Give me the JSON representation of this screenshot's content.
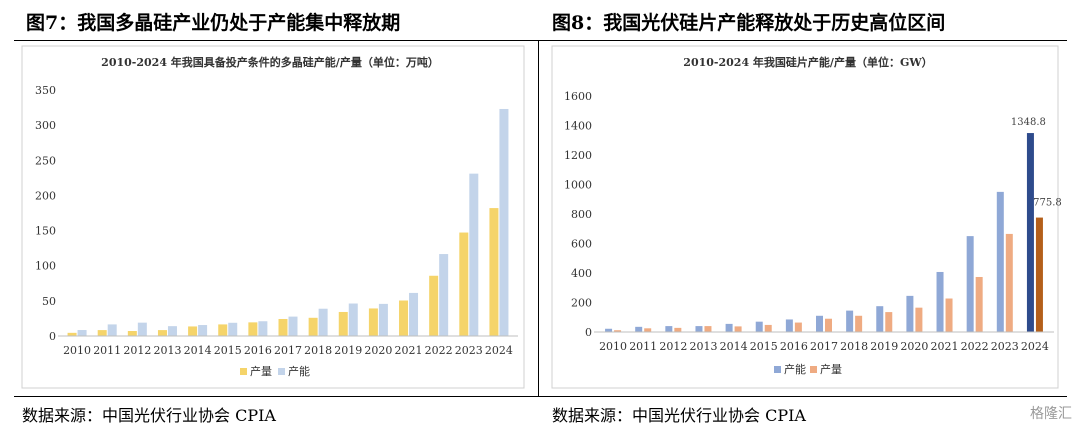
{
  "figures": {
    "left_title": "图7：我国多晶硅产业仍处于产能集中释放期",
    "right_title": "图8：我国光伏硅片产能释放处于历史高位区间",
    "left_source": "数据来源：中国光伏行业协会 CPIA",
    "right_source": "数据来源：中国光伏行业协会 CPIA",
    "watermark": "格隆汇"
  },
  "colors": {
    "left_output": "#f5d46a",
    "left_capacity": "#c3d4ea",
    "right_capacity": "#8fa8d6",
    "right_output": "#efab82",
    "right_capacity_2024": "#2e4b8c",
    "right_output_2024": "#b45f1a"
  },
  "chart_data": [
    {
      "type": "bar",
      "title": "2010-2024 年我国具备投产条件的多晶硅产能/产量（单位：万吨）",
      "categories": [
        "2010",
        "2011",
        "2012",
        "2013",
        "2014",
        "2015",
        "2016",
        "2017",
        "2018",
        "2019",
        "2020",
        "2021",
        "2022",
        "2023",
        "2024"
      ],
      "series": [
        {
          "name": "产量",
          "values": [
            4.5,
            8.4,
            7.1,
            8.4,
            13.6,
            16.5,
            19.4,
            24.2,
            25.9,
            34.2,
            39.2,
            50.5,
            85.7,
            147.2,
            182.0
          ]
        },
        {
          "name": "产能",
          "values": [
            8.5,
            16.5,
            19.0,
            14.0,
            15.6,
            18.8,
            21.0,
            27.6,
            38.8,
            46.2,
            45.7,
            61.3,
            116.6,
            231.0,
            323.0
          ]
        }
      ],
      "ylim": [
        0,
        350
      ],
      "yticks": [
        0,
        50,
        100,
        150,
        200,
        250,
        300,
        350
      ],
      "grid": false,
      "legend": "bottom"
    },
    {
      "type": "bar",
      "title": "2010-2024 年我国硅片产能/产量（单位：GW）",
      "categories": [
        "2010",
        "2011",
        "2012",
        "2013",
        "2014",
        "2015",
        "2016",
        "2017",
        "2018",
        "2019",
        "2020",
        "2021",
        "2022",
        "2023",
        "2024"
      ],
      "series": [
        {
          "name": "产能",
          "values": [
            22,
            35,
            40,
            40,
            55,
            70,
            85,
            110,
            145,
            175,
            245,
            407,
            650,
            950,
            1348.8
          ]
        },
        {
          "name": "产量",
          "values": [
            12,
            25,
            28,
            40,
            38,
            48,
            64,
            90,
            110,
            135,
            165,
            227,
            373,
            665,
            775.8
          ]
        }
      ],
      "data_labels": {
        "capacity_2024": "1348.8",
        "output_2024": "775.8"
      },
      "ylim": [
        0,
        1600
      ],
      "yticks": [
        0,
        200,
        400,
        600,
        800,
        1000,
        1200,
        1400,
        1600
      ],
      "grid": false,
      "legend": "bottom"
    }
  ]
}
